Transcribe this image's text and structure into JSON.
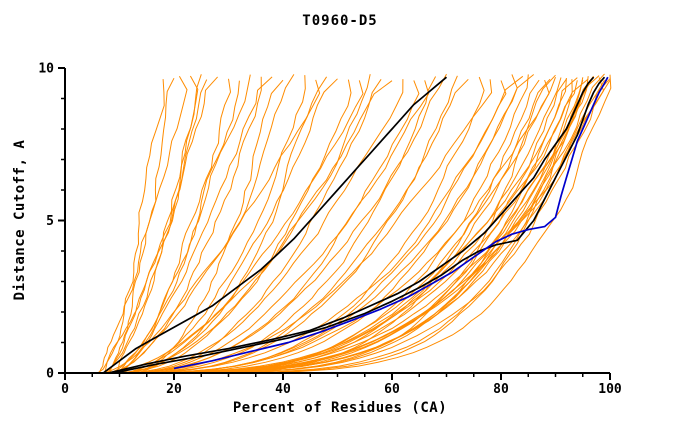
{
  "colors": {
    "background": "#ffffff",
    "axis": "#000000",
    "ensemble": "#ff8c00",
    "highlight": "#000000",
    "reference": "#0000cc"
  },
  "chart_data": {
    "type": "line",
    "title": "T0960-D5",
    "xlabel": "Percent of Residues (CA)",
    "ylabel": "Distance Cutoff, A",
    "xlim": [
      0,
      100
    ],
    "ylim": [
      0,
      10
    ],
    "x_major_ticks": [
      0,
      20,
      40,
      60,
      80,
      100
    ],
    "x_minor_step": 5,
    "y_major_ticks": [
      0,
      5,
      10
    ],
    "y_minor_step": 1,
    "grid": false,
    "legend": null,
    "series": [
      {
        "name": "black-model-curve-1",
        "color": "#000000",
        "points": [
          [
            7,
            0
          ],
          [
            10,
            0.4
          ],
          [
            13,
            0.8
          ],
          [
            16,
            1.1
          ],
          [
            20,
            1.5
          ],
          [
            24,
            1.9
          ],
          [
            27,
            2.2
          ],
          [
            30,
            2.6
          ],
          [
            33,
            3.0
          ],
          [
            36,
            3.4
          ],
          [
            39,
            3.9
          ],
          [
            42,
            4.4
          ],
          [
            44,
            4.8
          ],
          [
            46,
            5.2
          ],
          [
            48,
            5.6
          ],
          [
            50,
            6.0
          ],
          [
            52,
            6.4
          ],
          [
            54,
            6.8
          ],
          [
            56,
            7.2
          ],
          [
            58,
            7.6
          ],
          [
            60,
            8.0
          ],
          [
            62,
            8.4
          ],
          [
            64,
            8.8
          ],
          [
            66,
            9.1
          ],
          [
            68,
            9.4
          ],
          [
            70,
            9.7
          ]
        ]
      },
      {
        "name": "black-model-curve-2",
        "color": "#000000",
        "points": [
          [
            8,
            0
          ],
          [
            15,
            0.3
          ],
          [
            22,
            0.55
          ],
          [
            30,
            0.8
          ],
          [
            38,
            1.1
          ],
          [
            45,
            1.4
          ],
          [
            51,
            1.8
          ],
          [
            56,
            2.2
          ],
          [
            61,
            2.6
          ],
          [
            65,
            3.0
          ],
          [
            69,
            3.5
          ],
          [
            73,
            4.0
          ],
          [
            77,
            4.6
          ],
          [
            80,
            5.2
          ],
          [
            83,
            5.8
          ],
          [
            86,
            6.4
          ],
          [
            88,
            7.0
          ],
          [
            90,
            7.5
          ],
          [
            92,
            8.0
          ],
          [
            93,
            8.4
          ],
          [
            94,
            8.8
          ],
          [
            95,
            9.2
          ],
          [
            96,
            9.5
          ],
          [
            97,
            9.7
          ]
        ]
      },
      {
        "name": "black-model-curve-3",
        "color": "#000000",
        "points": [
          [
            9,
            0
          ],
          [
            17,
            0.3
          ],
          [
            25,
            0.55
          ],
          [
            33,
            0.85
          ],
          [
            41,
            1.15
          ],
          [
            48,
            1.5
          ],
          [
            55,
            1.95
          ],
          [
            60,
            2.35
          ],
          [
            65,
            2.8
          ],
          [
            69,
            3.2
          ],
          [
            73,
            3.7
          ],
          [
            76,
            4.0
          ],
          [
            79,
            4.2
          ],
          [
            83,
            4.35
          ],
          [
            86,
            5.0
          ],
          [
            88,
            5.7
          ],
          [
            90,
            6.4
          ],
          [
            92,
            7.1
          ],
          [
            94,
            7.8
          ],
          [
            95,
            8.3
          ],
          [
            96,
            8.8
          ],
          [
            97,
            9.2
          ],
          [
            98,
            9.5
          ],
          [
            99,
            9.7
          ]
        ]
      },
      {
        "name": "blue-reference-curve",
        "color": "#0000cc",
        "points": [
          [
            20,
            0.15
          ],
          [
            27,
            0.4
          ],
          [
            34,
            0.7
          ],
          [
            41,
            1.0
          ],
          [
            47,
            1.35
          ],
          [
            53,
            1.75
          ],
          [
            58,
            2.1
          ],
          [
            63,
            2.5
          ],
          [
            67,
            2.9
          ],
          [
            71,
            3.3
          ],
          [
            75,
            3.8
          ],
          [
            79,
            4.3
          ],
          [
            82,
            4.55
          ],
          [
            85,
            4.7
          ],
          [
            88,
            4.8
          ],
          [
            90,
            5.1
          ],
          [
            91,
            5.8
          ],
          [
            92,
            6.4
          ],
          [
            93,
            7.0
          ],
          [
            94,
            7.6
          ],
          [
            95,
            8.0
          ],
          [
            96,
            8.4
          ],
          [
            97,
            8.8
          ],
          [
            98,
            9.2
          ],
          [
            99,
            9.5
          ],
          [
            99.6,
            9.7
          ]
        ]
      }
    ],
    "ensemble": {
      "name": "orange-model-ensemble",
      "color": "#ff8c00",
      "y_top": 9.7,
      "curve_params_format": [
        "x_start_at_y0",
        "x_end_at_ytop",
        "shape_exponent"
      ],
      "curves": [
        [
          7,
          18,
          0.8
        ],
        [
          8,
          20,
          0.7
        ],
        [
          6,
          21,
          0.85
        ],
        [
          9,
          23,
          0.72
        ],
        [
          7,
          25,
          0.65
        ],
        [
          8,
          26,
          0.9
        ],
        [
          6,
          28,
          0.75
        ],
        [
          9,
          30,
          0.62
        ],
        [
          8,
          32,
          0.58
        ],
        [
          10,
          34,
          0.72
        ],
        [
          7,
          36,
          0.5
        ],
        [
          9,
          38,
          0.66
        ],
        [
          11,
          40,
          0.46
        ],
        [
          8,
          42,
          0.6
        ],
        [
          10,
          44,
          0.52
        ],
        [
          7,
          46,
          0.7
        ],
        [
          9,
          48,
          0.45
        ],
        [
          12,
          50,
          0.56
        ],
        [
          8,
          52,
          0.42
        ],
        [
          10,
          54,
          0.6
        ],
        [
          9,
          56,
          0.5
        ],
        [
          11,
          58,
          0.44
        ],
        [
          7,
          60,
          0.55
        ],
        [
          10,
          62,
          0.46
        ],
        [
          8,
          64,
          0.38
        ],
        [
          12,
          66,
          0.5
        ],
        [
          9,
          68,
          0.35
        ],
        [
          11,
          70,
          0.45
        ],
        [
          8,
          72,
          0.33
        ],
        [
          13,
          74,
          0.4
        ],
        [
          10,
          76,
          0.3
        ],
        [
          9,
          78,
          0.42
        ],
        [
          12,
          80,
          0.34
        ],
        [
          10,
          82,
          0.3
        ],
        [
          8,
          84,
          0.36
        ],
        [
          12,
          85,
          0.27
        ],
        [
          9,
          86,
          0.33
        ],
        [
          11,
          87,
          0.24
        ],
        [
          13,
          88,
          0.3
        ],
        [
          8,
          89,
          0.26
        ],
        [
          10,
          90,
          0.35
        ],
        [
          12,
          90,
          0.22
        ],
        [
          9,
          91,
          0.3
        ],
        [
          11,
          92,
          0.25
        ],
        [
          14,
          92,
          0.33
        ],
        [
          8,
          93,
          0.28
        ],
        [
          10,
          94,
          0.22
        ],
        [
          12,
          94,
          0.32
        ],
        [
          9,
          95,
          0.26
        ],
        [
          13,
          95,
          0.2
        ],
        [
          11,
          96,
          0.3
        ],
        [
          8,
          96,
          0.24
        ],
        [
          10,
          97,
          0.28
        ],
        [
          12,
          97,
          0.21
        ],
        [
          9,
          98,
          0.25
        ],
        [
          14,
          98,
          0.3
        ],
        [
          10,
          99,
          0.23
        ],
        [
          12,
          99,
          0.27
        ],
        [
          8,
          100,
          0.25
        ],
        [
          11,
          100,
          0.3
        ],
        [
          13,
          100,
          0.2
        ]
      ]
    }
  }
}
